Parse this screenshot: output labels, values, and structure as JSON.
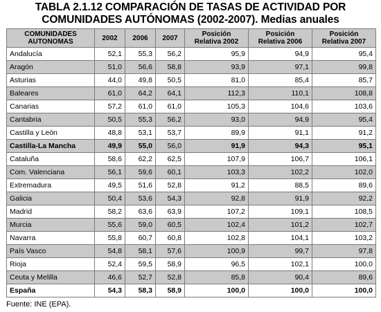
{
  "title_line1": "TABLA 2.1.12 COMPARACIÓN DE TASAS DE ACTIVIDAD POR",
  "title_line2": "COMUNIDADES AUTÓNOMAS (2002-2007). Medias anuales",
  "headers": {
    "region_line1": "COMUNIDADES",
    "region_line2": "AUTONOMAS",
    "y2002": "2002",
    "y2006": "2006",
    "y2007": "2007",
    "pos2002_line1": "Posición",
    "pos2002_line2": "Relativa 2002",
    "pos2006_line1": "Posición",
    "pos2006_line2": "Relativa 2006",
    "pos2007_line1": "Posición",
    "pos2007_line2": "Relativa 2007"
  },
  "rows": [
    {
      "region": "Andalucía",
      "v2002": "52,1",
      "v2006": "55,3",
      "v2007": "56,2",
      "p2002": "95,9",
      "p2006": "94,9",
      "p2007": "95,4"
    },
    {
      "region": "Aragón",
      "v2002": "51,0",
      "v2006": "56,6",
      "v2007": "58,8",
      "p2002": "93,9",
      "p2006": "97,1",
      "p2007": "99,8"
    },
    {
      "region": "Asturias",
      "v2002": "44,0",
      "v2006": "49,8",
      "v2007": "50,5",
      "p2002": "81,0",
      "p2006": "85,4",
      "p2007": "85,7"
    },
    {
      "region": "Baleares",
      "v2002": "61,0",
      "v2006": "64,2",
      "v2007": "64,1",
      "p2002": "112,3",
      "p2006": "110,1",
      "p2007": "108,8"
    },
    {
      "region": "Canarias",
      "v2002": "57,2",
      "v2006": "61,0",
      "v2007": "61,0",
      "p2002": "105,3",
      "p2006": "104,6",
      "p2007": "103,6"
    },
    {
      "region": "Cantabria",
      "v2002": "50,5",
      "v2006": "55,3",
      "v2007": "56,2",
      "p2002": "93,0",
      "p2006": "94,9",
      "p2007": "95,4"
    },
    {
      "region": "Castilla y León",
      "v2002": "48,8",
      "v2006": "53,1",
      "v2007": "53,7",
      "p2002": "89,9",
      "p2006": "91,1",
      "p2007": "91,2"
    },
    {
      "region": "Castilla-La Mancha",
      "v2002": "49,9",
      "v2006": "55,0",
      "v2007": "56,0",
      "p2002": "91,9",
      "p2006": "94,3",
      "p2007": "95,1"
    },
    {
      "region": "Cataluña",
      "v2002": "58,6",
      "v2006": "62,2",
      "v2007": "62,5",
      "p2002": "107,9",
      "p2006": "106,7",
      "p2007": "106,1"
    },
    {
      "region": "Com. Valenciana",
      "v2002": "56,1",
      "v2006": "59,6",
      "v2007": "60,1",
      "p2002": "103,3",
      "p2006": "102,2",
      "p2007": "102,0"
    },
    {
      "region": "Extremadura",
      "v2002": "49,5",
      "v2006": "51,6",
      "v2007": "52,8",
      "p2002": "91,2",
      "p2006": "88,5",
      "p2007": "89,6"
    },
    {
      "region": "Galicia",
      "v2002": "50,4",
      "v2006": "53,6",
      "v2007": "54,3",
      "p2002": "92,8",
      "p2006": "91,9",
      "p2007": "92,2"
    },
    {
      "region": "Madrid",
      "v2002": "58,2",
      "v2006": "63,6",
      "v2007": "63,9",
      "p2002": "107,2",
      "p2006": "109,1",
      "p2007": "108,5"
    },
    {
      "region": "Murcia",
      "v2002": "55,6",
      "v2006": "59,0",
      "v2007": "60,5",
      "p2002": "102,4",
      "p2006": "101,2",
      "p2007": "102,7"
    },
    {
      "region": "Navarra",
      "v2002": "55,8",
      "v2006": "60,7",
      "v2007": "60,8",
      "p2002": "102,8",
      "p2006": "104,1",
      "p2007": "103,2"
    },
    {
      "region": "País Vasco",
      "v2002": "54,8",
      "v2006": "58,1",
      "v2007": "57,6",
      "p2002": "100,9",
      "p2006": "99,7",
      "p2007": "97,8"
    },
    {
      "region": "Rioja",
      "v2002": "52,4",
      "v2006": "59,5",
      "v2007": "58,9",
      "p2002": "96,5",
      "p2006": "102,1",
      "p2007": "100,0"
    },
    {
      "region": "Ceuta y Melilla",
      "v2002": "46,6",
      "v2006": "52,7",
      "v2007": "52,8",
      "p2002": "85,8",
      "p2006": "90,4",
      "p2007": "89,6"
    },
    {
      "region": "España",
      "v2002": "54,3",
      "v2006": "58,3",
      "v2007": "58,9",
      "p2002": "100,0",
      "p2006": "100,0",
      "p2007": "100,0"
    }
  ],
  "footer": "Fuente: INE (EPA).",
  "colors": {
    "shade": "#c9c9c9",
    "border": "#7a7a7a"
  }
}
